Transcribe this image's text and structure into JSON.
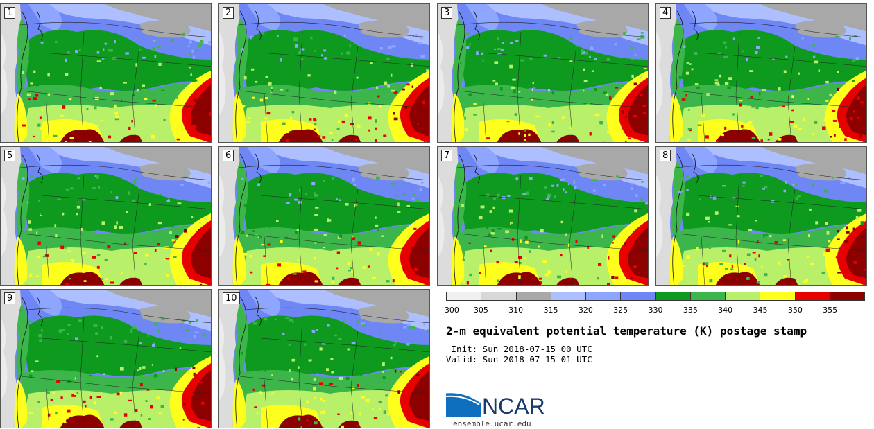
{
  "stamps": [
    {
      "label": "1"
    },
    {
      "label": "2"
    },
    {
      "label": "3"
    },
    {
      "label": "4"
    },
    {
      "label": "5"
    },
    {
      "label": "6"
    },
    {
      "label": "7"
    },
    {
      "label": "8"
    },
    {
      "label": "9"
    },
    {
      "label": "10"
    }
  ],
  "colorbar": {
    "ticks": [
      "300",
      "305",
      "310",
      "315",
      "320",
      "325",
      "330",
      "335",
      "340",
      "345",
      "350",
      "355"
    ],
    "colors": [
      "#f0f0f0",
      "#d8d8d8",
      "#a8a8a8",
      "#aebfff",
      "#8ea6ff",
      "#6f86f5",
      "#0d9a1e",
      "#3cb64a",
      "#b8f06a",
      "#ffff1e",
      "#e60000",
      "#8c0000"
    ]
  },
  "title": "2-m equivalent potential temperature (K) postage stamp",
  "init": " Init: Sun 2018-07-15 00 UTC",
  "valid": "Valid: Sun 2018-07-15 01 UTC",
  "logo": {
    "text": "NCAR",
    "site": "ensemble.ucar.edu",
    "color": "#1a3a6e",
    "accent": "#0f6fbf"
  },
  "map_colors": {
    "ocean": "#dcdcdc",
    "ocean_light": "#ececec",
    "north_gray": "#a8a8a8",
    "blue_light": "#aebfff",
    "blue_mid": "#8ea6ff",
    "blue_dark": "#6f86f5",
    "green_dark": "#0d9a1e",
    "green_mid": "#3cb64a",
    "green_light": "#b8f06a",
    "yellow": "#ffff1e",
    "red": "#e60000",
    "dark_red": "#8c0000"
  }
}
